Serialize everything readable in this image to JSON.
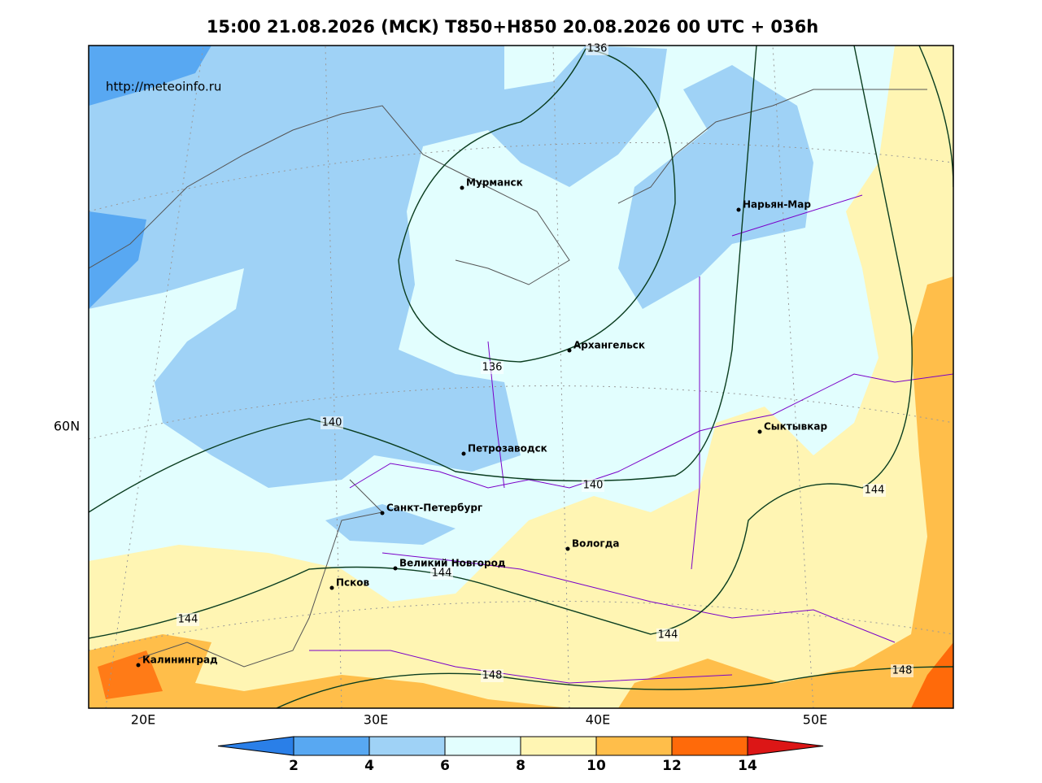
{
  "title": "15:00 21.08.2026 (MCK) T850+H850 20.08.2026 00 UTC + 036h",
  "url": "http://meteoinfo.ru",
  "axis_labels": {
    "lat": [
      "60N"
    ],
    "lon": [
      "20E",
      "30E",
      "40E",
      "50E"
    ]
  },
  "cities": [
    "Мурманск",
    "Нарьян-Мар",
    "Архангельск",
    "Сыктывкар",
    "Петрозаводск",
    "Санкт-Петербург",
    "Вологда",
    "Великий Новгород",
    "Псков",
    "Калининград"
  ],
  "contour_labels": [
    "136",
    "136",
    "140",
    "140",
    "144",
    "144",
    "144",
    "144",
    "148",
    "148"
  ],
  "colorbar": {
    "ticks": [
      2,
      4,
      6,
      8,
      10,
      12,
      14
    ],
    "colors": [
      "#2a7fe8",
      "#58a8f2",
      "#9fd2f6",
      "#e2fefe",
      "#fff5b3",
      "#ffbe4a",
      "#ff6a0a",
      "#dc1616"
    ]
  }
}
